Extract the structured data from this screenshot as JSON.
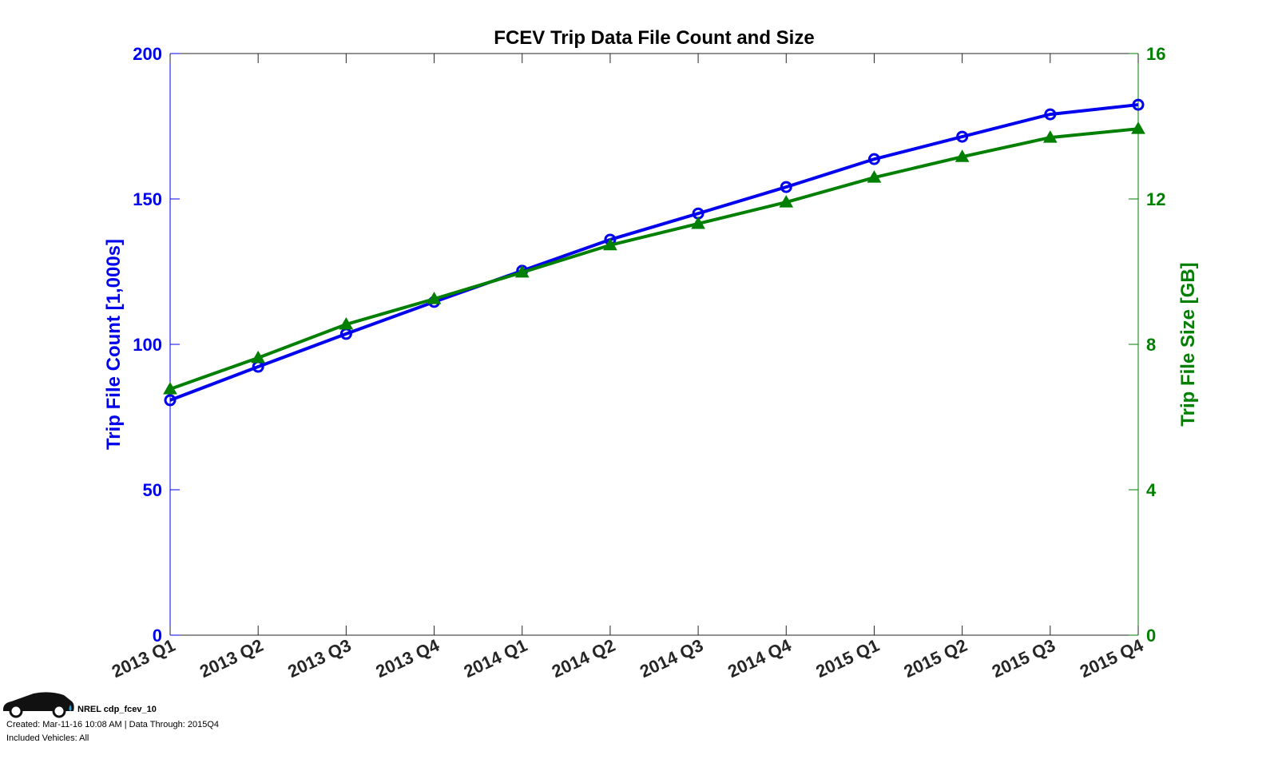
{
  "chart_data": {
    "type": "line",
    "title": "FCEV Trip Data File Count and Size",
    "xlabel": "",
    "categories": [
      "2013 Q1",
      "2013 Q2",
      "2013 Q3",
      "2013 Q4",
      "2014 Q1",
      "2014 Q2",
      "2014 Q3",
      "2014 Q4",
      "2015 Q1",
      "2015 Q2",
      "2015 Q3",
      "2015 Q4"
    ],
    "y_left": {
      "label": "Trip File Count [1,000s]",
      "lim": [
        0,
        200
      ],
      "ticks": [
        0,
        50,
        100,
        150,
        200
      ],
      "color": "#0000ee"
    },
    "y_right": {
      "label": "Trip File Size [GB]",
      "lim": [
        0,
        16
      ],
      "ticks": [
        0,
        4,
        8,
        12,
        16
      ],
      "color": "#007f00"
    },
    "grid": false,
    "series": [
      {
        "name": "Trip File Count",
        "axis": "left",
        "marker": "circle",
        "color": "#0000ee",
        "values": [
          80.8,
          92.3,
          103.6,
          114.6,
          125.3,
          136.0,
          145.0,
          154.1,
          163.7,
          171.4,
          179.1,
          182.4
        ]
      },
      {
        "name": "Trip File Size",
        "axis": "right",
        "marker": "triangle",
        "color": "#007f00",
        "values": [
          6.77,
          7.63,
          8.55,
          9.25,
          9.98,
          10.73,
          11.32,
          11.91,
          12.59,
          13.16,
          13.69,
          13.93
        ]
      }
    ]
  },
  "footer": {
    "logo_text": "NREL cdp_fcev_10",
    "created": "Created: Mar-11-16 10:08 AM | Data Through: 2015Q4",
    "vehicles": "Included Vehicles: All"
  }
}
